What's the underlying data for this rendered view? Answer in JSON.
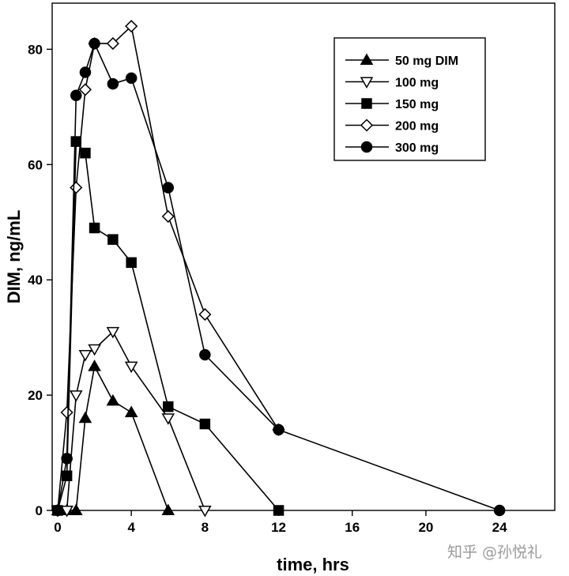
{
  "chart_data": {
    "type": "line",
    "xlabel": "time, hrs",
    "ylabel": "DIM, ng/mL",
    "xlim": [
      -0.3,
      27
    ],
    "ylim": [
      0,
      88
    ],
    "xticks": [
      0,
      4,
      8,
      12,
      16,
      20,
      24
    ],
    "yticks": [
      0,
      20,
      40,
      60,
      80
    ],
    "x_tick_labels": [
      "0",
      "4",
      "8",
      "12",
      "16",
      "20",
      "24"
    ],
    "y_tick_labels": [
      "0",
      "20",
      "40",
      "60",
      "80"
    ],
    "grid": false,
    "legend_position": "top-right",
    "series": [
      {
        "name": "50 mg DIM",
        "marker": "triangle-up",
        "filled": true,
        "x": [
          0,
          0.5,
          1,
          1.5,
          2,
          3,
          4,
          6
        ],
        "y": [
          0,
          0,
          0,
          16,
          25,
          19,
          17,
          0
        ]
      },
      {
        "name": "100 mg",
        "marker": "triangle-down",
        "filled": false,
        "x": [
          0,
          0.5,
          1,
          1.5,
          2,
          3,
          4,
          6,
          8
        ],
        "y": [
          0,
          0,
          20,
          27,
          28,
          31,
          25,
          16,
          0
        ]
      },
      {
        "name": "150 mg",
        "marker": "square",
        "filled": true,
        "x": [
          0,
          0.5,
          1,
          1.5,
          2,
          3,
          4,
          6,
          8,
          12
        ],
        "y": [
          0,
          6,
          64,
          62,
          49,
          47,
          43,
          18,
          15,
          0
        ]
      },
      {
        "name": "200 mg",
        "marker": "diamond",
        "filled": false,
        "x": [
          0,
          0.5,
          1,
          1.5,
          2,
          3,
          4,
          6,
          8,
          12
        ],
        "y": [
          0,
          17,
          56,
          73,
          81,
          81,
          84,
          51,
          34,
          14
        ]
      },
      {
        "name": "300 mg",
        "marker": "circle",
        "filled": true,
        "x": [
          0,
          0.5,
          1,
          1.5,
          2,
          3,
          4,
          6,
          8,
          12,
          24
        ],
        "y": [
          0,
          9,
          72,
          76,
          81,
          74,
          75,
          56,
          27,
          14,
          0
        ]
      }
    ]
  },
  "watermark": "知乎 @孙悦礼"
}
